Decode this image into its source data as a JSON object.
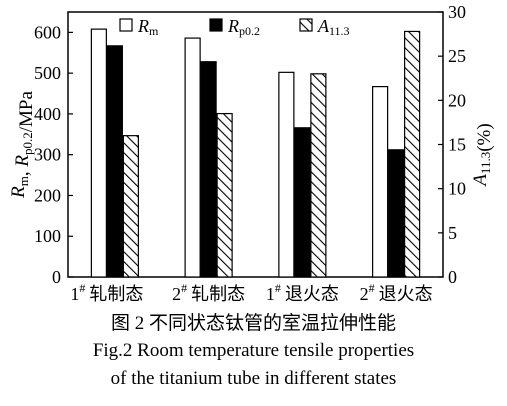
{
  "chart_data": {
    "type": "bar",
    "categories": [
      "1# 轧制态",
      "2# 轧制态",
      "1# 退火态",
      "2# 退火态"
    ],
    "categories_parts": [
      {
        "num": "1",
        "sup": "#",
        "label": "轧制态"
      },
      {
        "num": "2",
        "sup": "#",
        "label": "轧制态"
      },
      {
        "num": "1",
        "sup": "#",
        "label": "退火态"
      },
      {
        "num": "2",
        "sup": "#",
        "label": "退火态"
      }
    ],
    "series": [
      {
        "name": "Rm",
        "name_main": "R",
        "name_sub": "m",
        "axis": "left",
        "fill": "white",
        "values": [
          608,
          586,
          502,
          467
        ]
      },
      {
        "name": "Rp0.2",
        "name_main": "R",
        "name_sub": "p0.2",
        "axis": "left",
        "fill": "black",
        "values": [
          567,
          528,
          366,
          312
        ]
      },
      {
        "name": "A11.3",
        "name_main": "A",
        "name_sub": "11.3",
        "axis": "right",
        "fill": "hatch",
        "values": [
          16,
          18.5,
          23,
          27.8
        ]
      }
    ],
    "y_left": {
      "label": "Rm, Rp0.2/MPa",
      "label_parts": [
        {
          "t": "R",
          "style": "italic"
        },
        {
          "t": "m",
          "style": "sub"
        },
        {
          "t": ", ",
          "style": "normal"
        },
        {
          "t": "R",
          "style": "italic"
        },
        {
          "t": "p0.2",
          "style": "sub"
        },
        {
          "t": "/MPa",
          "style": "normal"
        }
      ],
      "ylim": [
        0,
        650
      ],
      "ticks": [
        0,
        100,
        200,
        300,
        400,
        500,
        600
      ]
    },
    "y_right": {
      "label": "A11.3(%)",
      "label_parts": [
        {
          "t": "A",
          "style": "italic"
        },
        {
          "t": "11.3",
          "style": "sub"
        },
        {
          "t": "(%)",
          "style": "normal"
        }
      ],
      "ylim": [
        0,
        30
      ],
      "ticks": [
        0,
        5,
        10,
        15,
        20,
        25,
        30
      ]
    },
    "legend_position": "top",
    "grid": false
  },
  "caption": {
    "zh": "图 2  不同状态钛管的室温拉伸性能",
    "en_line1": "Fig.2  Room temperature tensile properties",
    "en_line2": "of the titanium tube in different states"
  }
}
